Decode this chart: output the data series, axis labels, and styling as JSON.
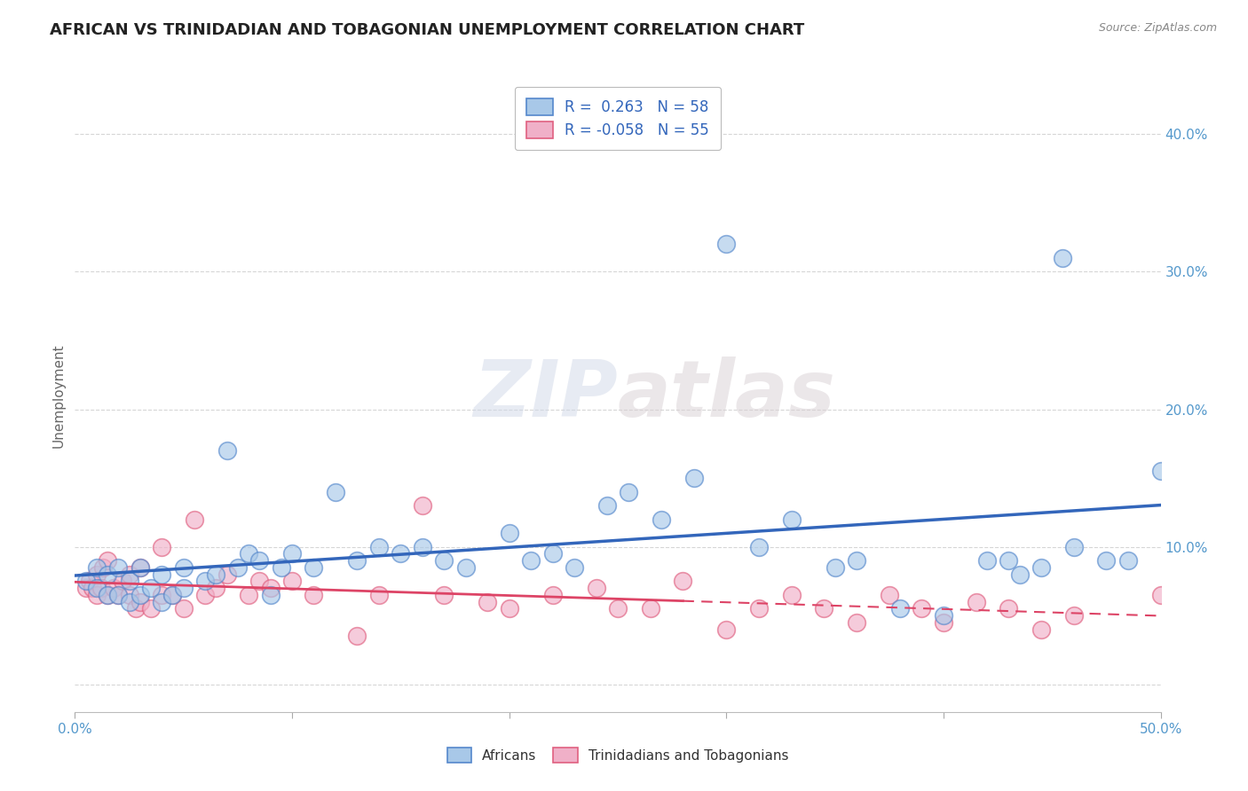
{
  "title": "AFRICAN VS TRINIDADIAN AND TOBAGONIAN UNEMPLOYMENT CORRELATION CHART",
  "source": "Source: ZipAtlas.com",
  "ylabel": "Unemployment",
  "xlim": [
    0.0,
    0.5
  ],
  "ylim": [
    -0.02,
    0.44
  ],
  "yticks": [
    0.0,
    0.1,
    0.2,
    0.3,
    0.4
  ],
  "ytick_labels": [
    "",
    "10.0%",
    "20.0%",
    "30.0%",
    "40.0%"
  ],
  "african_color": "#a8c8e8",
  "african_edge": "#5588cc",
  "trinidadian_color": "#f0b0c8",
  "trinidadian_edge": "#e06080",
  "trend_african_color": "#3366bb",
  "trend_trinidadian_color": "#dd4466",
  "watermark": "ZIPatlas",
  "african_x": [
    0.005,
    0.01,
    0.01,
    0.015,
    0.015,
    0.02,
    0.02,
    0.025,
    0.025,
    0.03,
    0.03,
    0.035,
    0.04,
    0.04,
    0.045,
    0.05,
    0.05,
    0.06,
    0.065,
    0.07,
    0.075,
    0.08,
    0.085,
    0.09,
    0.095,
    0.1,
    0.11,
    0.12,
    0.13,
    0.14,
    0.15,
    0.16,
    0.17,
    0.18,
    0.2,
    0.21,
    0.22,
    0.23,
    0.245,
    0.255,
    0.27,
    0.285,
    0.3,
    0.315,
    0.33,
    0.35,
    0.36,
    0.38,
    0.4,
    0.42,
    0.43,
    0.435,
    0.445,
    0.455,
    0.46,
    0.475,
    0.485,
    0.5
  ],
  "african_y": [
    0.075,
    0.07,
    0.085,
    0.065,
    0.08,
    0.065,
    0.085,
    0.06,
    0.075,
    0.065,
    0.085,
    0.07,
    0.06,
    0.08,
    0.065,
    0.07,
    0.085,
    0.075,
    0.08,
    0.17,
    0.085,
    0.095,
    0.09,
    0.065,
    0.085,
    0.095,
    0.085,
    0.14,
    0.09,
    0.1,
    0.095,
    0.1,
    0.09,
    0.085,
    0.11,
    0.09,
    0.095,
    0.085,
    0.13,
    0.14,
    0.12,
    0.15,
    0.32,
    0.1,
    0.12,
    0.085,
    0.09,
    0.055,
    0.05,
    0.09,
    0.09,
    0.08,
    0.085,
    0.31,
    0.1,
    0.09,
    0.09,
    0.155
  ],
  "trinidadian_x": [
    0.005,
    0.007,
    0.008,
    0.01,
    0.01,
    0.012,
    0.013,
    0.015,
    0.015,
    0.018,
    0.02,
    0.022,
    0.025,
    0.025,
    0.028,
    0.03,
    0.03,
    0.035,
    0.04,
    0.04,
    0.045,
    0.05,
    0.055,
    0.06,
    0.065,
    0.07,
    0.08,
    0.085,
    0.09,
    0.1,
    0.11,
    0.13,
    0.14,
    0.16,
    0.17,
    0.19,
    0.2,
    0.22,
    0.24,
    0.25,
    0.265,
    0.28,
    0.3,
    0.315,
    0.33,
    0.345,
    0.36,
    0.375,
    0.39,
    0.4,
    0.415,
    0.43,
    0.445,
    0.46,
    0.5
  ],
  "trinidadian_y": [
    0.07,
    0.075,
    0.07,
    0.065,
    0.08,
    0.07,
    0.085,
    0.065,
    0.09,
    0.07,
    0.065,
    0.075,
    0.065,
    0.08,
    0.055,
    0.06,
    0.085,
    0.055,
    0.065,
    0.1,
    0.065,
    0.055,
    0.12,
    0.065,
    0.07,
    0.08,
    0.065,
    0.075,
    0.07,
    0.075,
    0.065,
    0.035,
    0.065,
    0.13,
    0.065,
    0.06,
    0.055,
    0.065,
    0.07,
    0.055,
    0.055,
    0.075,
    0.04,
    0.055,
    0.065,
    0.055,
    0.045,
    0.065,
    0.055,
    0.045,
    0.06,
    0.055,
    0.04,
    0.05,
    0.065
  ],
  "background_color": "#ffffff",
  "grid_color": "#cccccc"
}
